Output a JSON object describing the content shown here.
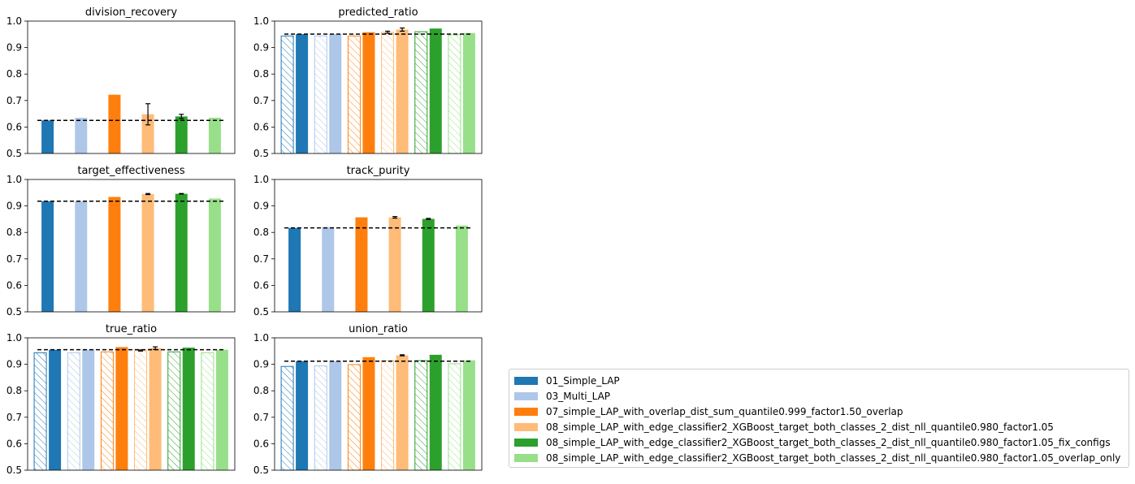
{
  "chart_data": {
    "type": "bar",
    "ylim": [
      0.5,
      1.0
    ],
    "yticks": [
      "0.5",
      "0.6",
      "0.7",
      "0.8",
      "0.9",
      "1.0"
    ],
    "legend_position": "bottom-right",
    "series_colors": [
      "#1f77b4",
      "#aec7e8",
      "#ff7f0e",
      "#ffbb78",
      "#2ca02c",
      "#98df8a"
    ],
    "legend": [
      "01_Simple_LAP",
      "03_Multi_LAP",
      "07_simple_LAP_with_overlap_dist_sum_quantile0.999_factor1.50_overlap",
      "08_simple_LAP_with_edge_classifier2_XGBoost_target_both_classes_2_dist_nll_quantile0.980_factor1.05",
      "08_simple_LAP_with_edge_classifier2_XGBoost_target_both_classes_2_dist_nll_quantile0.980_factor1.05_fix_configs",
      "08_simple_LAP_with_edge_classifier2_XGBoost_target_both_classes_2_dist_nll_quantile0.980_factor1.05_overlap_only"
    ],
    "panels": [
      {
        "title": "division_recovery",
        "paired": false,
        "baseline": 0.625,
        "values": [
          0.625,
          0.635,
          0.722,
          0.648,
          0.64,
          0.635
        ],
        "errors": [
          0,
          0,
          0,
          0.04,
          0.008,
          0
        ]
      },
      {
        "title": "predicted_ratio",
        "paired": true,
        "baseline": 0.951,
        "hatched": [
          0.944,
          0.944,
          0.944,
          0.958,
          0.96,
          0.948
        ],
        "values": [
          0.951,
          0.951,
          0.958,
          0.968,
          0.972,
          0.955
        ],
        "errors": [
          0,
          0,
          0,
          0.006,
          0,
          0
        ],
        "hatched_errors": [
          0,
          0,
          0,
          0.004,
          0,
          0
        ]
      },
      {
        "title": "target_effectiveness",
        "paired": false,
        "baseline": 0.918,
        "values": [
          0.918,
          0.918,
          0.934,
          0.945,
          0.946,
          0.928
        ],
        "errors": [
          0,
          0,
          0,
          0.002,
          0.001,
          0
        ]
      },
      {
        "title": "track_purity",
        "paired": false,
        "baseline": 0.817,
        "values": [
          0.817,
          0.82,
          0.857,
          0.857,
          0.851,
          0.826
        ],
        "errors": [
          0,
          0,
          0,
          0.003,
          0.002,
          0
        ]
      },
      {
        "title": "true_ratio",
        "paired": true,
        "baseline": 0.955,
        "hatched": [
          0.944,
          0.944,
          0.947,
          0.952,
          0.947,
          0.944
        ],
        "values": [
          0.955,
          0.955,
          0.965,
          0.961,
          0.963,
          0.955
        ],
        "errors": [
          0,
          0,
          0,
          0.005,
          0,
          0
        ],
        "hatched_errors": [
          0,
          0,
          0,
          0.002,
          0,
          0
        ]
      },
      {
        "title": "union_ratio",
        "paired": true,
        "baseline": 0.912,
        "hatched": [
          0.892,
          0.894,
          0.899,
          0.914,
          0.914,
          0.902
        ],
        "values": [
          0.912,
          0.912,
          0.927,
          0.934,
          0.936,
          0.915
        ],
        "errors": [
          0,
          0,
          0,
          0.002,
          0,
          0
        ],
        "hatched_errors": [
          0,
          0,
          0,
          0,
          0,
          0
        ]
      }
    ]
  }
}
